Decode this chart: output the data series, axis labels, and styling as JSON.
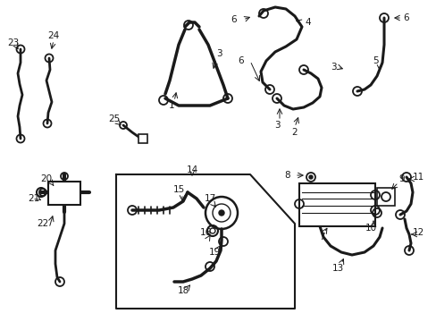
{
  "background_color": "#ffffff",
  "line_color": "#1a1a1a",
  "fig_width": 4.89,
  "fig_height": 3.6,
  "dpi": 100
}
